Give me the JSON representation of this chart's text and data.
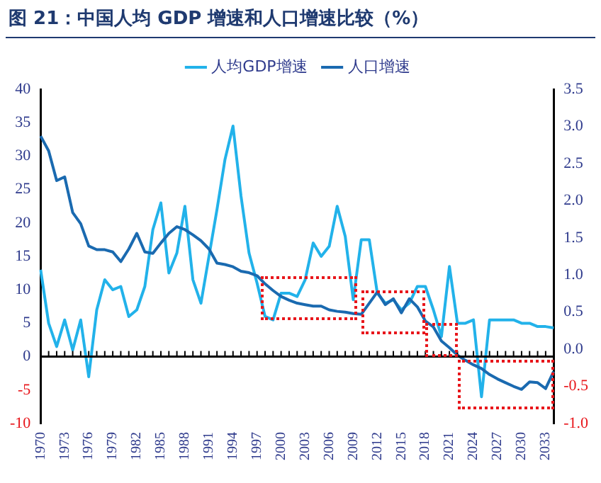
{
  "chart_data": {
    "type": "line",
    "title": "图 21：中国人均 GDP 增速和人口增速比较（%）",
    "categories": [
      "1970",
      null,
      null,
      "1973",
      null,
      null,
      "1976",
      null,
      null,
      "1979",
      null,
      null,
      "1982",
      null,
      null,
      "1985",
      null,
      null,
      "1988",
      null,
      null,
      "1991",
      null,
      null,
      "1994",
      null,
      null,
      "1997",
      null,
      null,
      "2000",
      null,
      null,
      "2003",
      null,
      null,
      "2006",
      null,
      null,
      "2009",
      null,
      null,
      "2012",
      null,
      null,
      "2015",
      null,
      null,
      "2018",
      null,
      null,
      "2021",
      null,
      null,
      "2024",
      null,
      null,
      "2027",
      null,
      null,
      "2030",
      null,
      null,
      "2033",
      null
    ],
    "series": [
      {
        "name": "人均GDP增速",
        "color": "#22b2ea",
        "values": [
          13,
          5,
          1.5,
          5.5,
          1,
          5.5,
          -3,
          7,
          11.5,
          10,
          10.5,
          6,
          7,
          10.5,
          19,
          23,
          12.5,
          15.5,
          22.5,
          11.5,
          8,
          15,
          22,
          29.5,
          34.5,
          24,
          15.5,
          11,
          6,
          5.5,
          9.5,
          9.5,
          9,
          11.5,
          17,
          15,
          16.5,
          22.5,
          18,
          8.5,
          17.5,
          17.5,
          9.5,
          8,
          8.5,
          7,
          8,
          10.5,
          10.5,
          7,
          3,
          13.5,
          5,
          5,
          5.5,
          -6,
          5.5,
          5.5,
          5.5,
          5.5,
          5,
          5,
          4.5,
          4.5,
          4.3
        ]
      },
      {
        "name": "人口增速",
        "color": "#1a6ab0",
        "axis": "y2",
        "values": [
          2.87,
          2.67,
          2.27,
          2.32,
          1.84,
          1.69,
          1.39,
          1.34,
          1.34,
          1.31,
          1.18,
          1.35,
          1.56,
          1.31,
          1.29,
          1.43,
          1.56,
          1.65,
          1.61,
          1.54,
          1.46,
          1.35,
          1.16,
          1.14,
          1.11,
          1.05,
          1.03,
          0.99,
          0.88,
          0.79,
          0.71,
          0.66,
          0.62,
          0.6,
          0.58,
          0.58,
          0.53,
          0.51,
          0.5,
          0.48,
          0.47,
          0.62,
          0.77,
          0.6,
          0.68,
          0.49,
          0.68,
          0.57,
          0.38,
          0.3,
          0.11,
          0.02,
          -0.08,
          -0.15,
          -0.21,
          -0.26,
          -0.34,
          -0.4,
          -0.45,
          -0.5,
          -0.54,
          -0.44,
          -0.45,
          -0.53,
          -0.3
        ]
      }
    ],
    "ylim": [
      -10,
      40
    ],
    "yticks": [
      -10,
      -5,
      0,
      5,
      10,
      15,
      20,
      25,
      30,
      35,
      40
    ],
    "y2lim": [
      -1,
      3.5
    ],
    "y2ticks": [
      {
        "value": -1,
        "label": "-1.0"
      },
      {
        "value": -0.5,
        "label": "-0.5"
      },
      {
        "value": 0,
        "label": "0.0"
      },
      {
        "value": 0.5,
        "label": "0.5"
      },
      {
        "value": 1,
        "label": "1.0"
      },
      {
        "value": 1.5,
        "label": "1.5"
      },
      {
        "value": 2,
        "label": "2.0"
      },
      {
        "value": 2.5,
        "label": "2.5"
      },
      {
        "value": 3,
        "label": "3.0"
      },
      {
        "value": 3.5,
        "label": "3.5"
      }
    ],
    "legend": "top",
    "marker": "none",
    "line_style": "solid"
  }
}
